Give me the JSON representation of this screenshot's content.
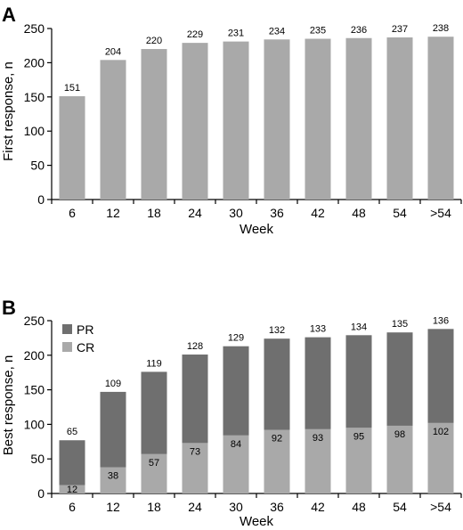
{
  "chart_data": [
    {
      "panel": "A",
      "type": "bar",
      "xlabel": "Week",
      "ylabel": "First response, n",
      "ylim": [
        0,
        250
      ],
      "yticks": [
        0,
        50,
        100,
        150,
        200,
        250
      ],
      "categories": [
        "6",
        "12",
        "18",
        "24",
        "30",
        "36",
        "42",
        "48",
        "54",
        ">54"
      ],
      "series": [
        {
          "values": [
            151,
            204,
            220,
            229,
            231,
            234,
            235,
            236,
            237,
            238
          ],
          "color": "#a9a9a9"
        }
      ]
    },
    {
      "panel": "B",
      "type": "bar",
      "stacked": true,
      "xlabel": "Week",
      "ylabel": "Best response, n",
      "ylim": [
        0,
        250
      ],
      "yticks": [
        0,
        50,
        100,
        150,
        200,
        250
      ],
      "legend": "top-left",
      "categories": [
        "6",
        "12",
        "18",
        "24",
        "30",
        "36",
        "42",
        "48",
        "54",
        ">54"
      ],
      "series": [
        {
          "name": "CR",
          "values": [
            12,
            38,
            57,
            73,
            84,
            92,
            93,
            95,
            98,
            102
          ],
          "color": "#a9a9a9"
        },
        {
          "name": "PR",
          "values": [
            65,
            109,
            119,
            128,
            129,
            132,
            133,
            134,
            135,
            136
          ],
          "color": "#6f6f6f"
        }
      ]
    }
  ]
}
